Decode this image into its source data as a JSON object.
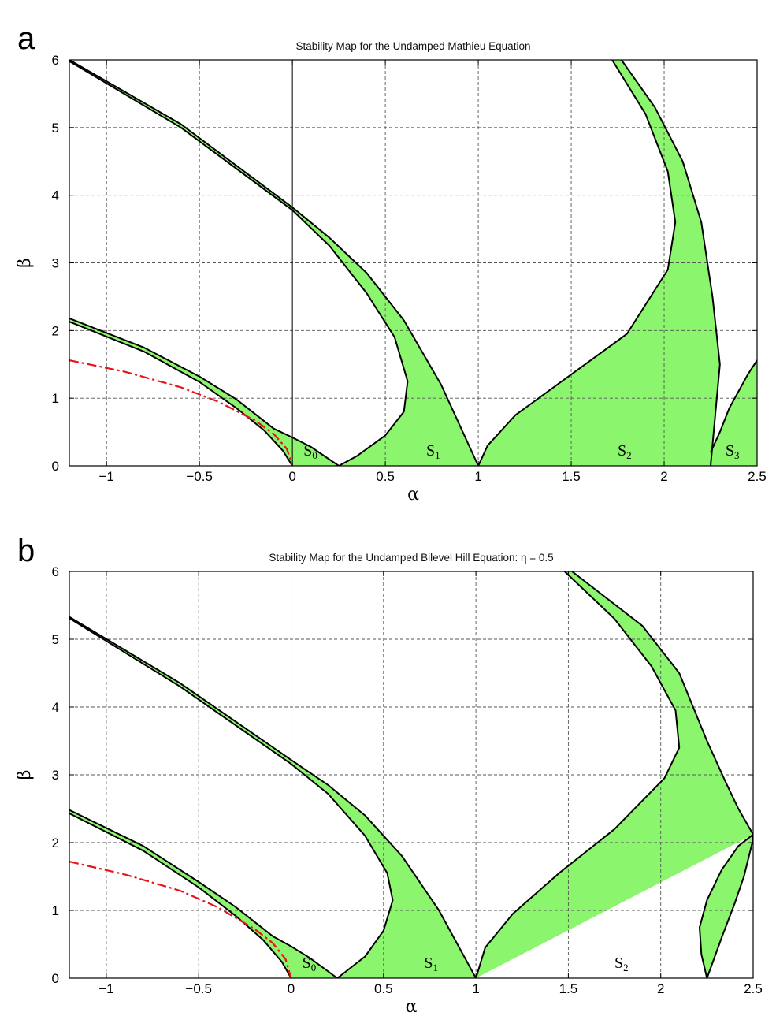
{
  "figure_labels": [
    "a",
    "b"
  ],
  "chart_data": [
    {
      "panel": "a",
      "type": "area",
      "title": "Stability Map for the Undamped Mathieu Equation",
      "xlabel": "α",
      "ylabel": "β",
      "xlim": [
        -1.2,
        2.5
      ],
      "ylim": [
        0,
        6
      ],
      "xticks": [
        -1,
        -0.5,
        0,
        0.5,
        1,
        1.5,
        2,
        2.5
      ],
      "xtick_labels": [
        "−1",
        "−0.5",
        "0",
        "0.5",
        "1",
        "1.5",
        "2",
        "2.5"
      ],
      "yticks": [
        0,
        1,
        2,
        3,
        4,
        5,
        6
      ],
      "ytick_labels": [
        "0",
        "1",
        "2",
        "3",
        "4",
        "5",
        "6"
      ],
      "grid": true,
      "fill_color": "#8cf56e",
      "dashed_curve_color": "#e8141a",
      "regions": [
        {
          "label": "S",
          "sub": "0",
          "label_pos": [
            0.06,
            0.15
          ],
          "upper": [
            [
              -1.2,
              2.18
            ],
            [
              -0.8,
              1.75
            ],
            [
              -0.5,
              1.32
            ],
            [
              -0.3,
              0.98
            ],
            [
              -0.1,
              0.55
            ],
            [
              0,
              0.42
            ],
            [
              0.1,
              0.28
            ],
            [
              0.25,
              0
            ]
          ],
          "lower": [
            [
              -1.2,
              2.13
            ],
            [
              -0.8,
              1.69
            ],
            [
              -0.5,
              1.24
            ],
            [
              -0.3,
              0.85
            ],
            [
              -0.15,
              0.52
            ],
            [
              -0.05,
              0.22
            ],
            [
              0,
              0
            ]
          ]
        },
        {
          "label": "S",
          "sub": "1",
          "label_pos": [
            0.72,
            0.15
          ],
          "upper": [
            [
              -1.2,
              6.0
            ],
            [
              -0.6,
              5.05
            ],
            [
              0,
              3.82
            ],
            [
              0.2,
              3.37
            ],
            [
              0.4,
              2.85
            ],
            [
              0.6,
              2.15
            ],
            [
              0.8,
              1.2
            ],
            [
              1.0,
              0
            ]
          ],
          "lower": [
            [
              -1.2,
              5.98
            ],
            [
              -0.6,
              5.0
            ],
            [
              0,
              3.78
            ],
            [
              0.2,
              3.25
            ],
            [
              0.4,
              2.55
            ],
            [
              0.55,
              1.9
            ],
            [
              0.62,
              1.25
            ],
            [
              0.6,
              0.8
            ],
            [
              0.5,
              0.45
            ],
            [
              0.35,
              0.15
            ],
            [
              0.25,
              0
            ]
          ]
        },
        {
          "label": "S",
          "sub": "2",
          "label_pos": [
            1.75,
            0.15
          ],
          "upper": [
            [
              1.77,
              6.0
            ],
            [
              1.95,
              5.3
            ],
            [
              2.1,
              4.5
            ],
            [
              2.2,
              3.6
            ],
            [
              2.26,
              2.5
            ],
            [
              2.3,
              1.5
            ],
            [
              2.27,
              0.6
            ],
            [
              2.25,
              0
            ]
          ],
          "lower": [
            [
              1.72,
              6.0
            ],
            [
              1.9,
              5.2
            ],
            [
              2.02,
              4.35
            ],
            [
              2.06,
              3.6
            ],
            [
              2.02,
              2.9
            ],
            [
              1.8,
              1.95
            ],
            [
              1.5,
              1.35
            ],
            [
              1.2,
              0.75
            ],
            [
              1.05,
              0.3
            ],
            [
              1.0,
              0
            ]
          ]
        },
        {
          "label": "S",
          "sub": "3",
          "label_pos": [
            2.33,
            0.15
          ],
          "upper": [
            [
              2.25,
              0.2
            ],
            [
              2.3,
              0.5
            ],
            [
              2.35,
              0.85
            ],
            [
              2.4,
              1.1
            ],
            [
              2.45,
              1.35
            ],
            [
              2.5,
              1.56
            ]
          ],
          "lower": [
            [
              2.25,
              0
            ],
            [
              2.5,
              0
            ]
          ]
        }
      ],
      "dashed_curve": [
        [
          -1.2,
          1.56
        ],
        [
          -0.9,
          1.39
        ],
        [
          -0.6,
          1.16
        ],
        [
          -0.4,
          0.95
        ],
        [
          -0.2,
          0.67
        ],
        [
          -0.1,
          0.47
        ],
        [
          -0.03,
          0.25
        ],
        [
          0,
          0
        ]
      ]
    },
    {
      "panel": "b",
      "type": "area",
      "title": "Stability Map for the Undamped Bilevel Hill Equation: η = 0.5",
      "xlabel": "α",
      "ylabel": "β",
      "xlim": [
        -1.2,
        2.5
      ],
      "ylim": [
        0,
        6
      ],
      "xticks": [
        -1,
        -0.5,
        0,
        0.5,
        1,
        1.5,
        2,
        2.5
      ],
      "xtick_labels": [
        "−1",
        "−0.5",
        "0",
        "0.5",
        "1",
        "1.5",
        "2",
        "2.5"
      ],
      "yticks": [
        0,
        1,
        2,
        3,
        4,
        5,
        6
      ],
      "ytick_labels": [
        "0",
        "1",
        "2",
        "3",
        "4",
        "5",
        "6"
      ],
      "grid": true,
      "fill_color": "#8cf56e",
      "dashed_curve_color": "#e8141a",
      "regions": [
        {
          "label": "S",
          "sub": "0",
          "label_pos": [
            0.06,
            0.15
          ],
          "upper": [
            [
              -1.2,
              2.48
            ],
            [
              -0.8,
              1.95
            ],
            [
              -0.5,
              1.42
            ],
            [
              -0.3,
              1.05
            ],
            [
              -0.1,
              0.62
            ],
            [
              0,
              0.47
            ],
            [
              0.1,
              0.3
            ],
            [
              0.25,
              0
            ]
          ],
          "lower": [
            [
              -1.2,
              2.43
            ],
            [
              -0.8,
              1.88
            ],
            [
              -0.5,
              1.34
            ],
            [
              -0.3,
              0.92
            ],
            [
              -0.15,
              0.56
            ],
            [
              -0.05,
              0.24
            ],
            [
              0,
              0
            ]
          ]
        },
        {
          "label": "S",
          "sub": "1",
          "label_pos": [
            0.72,
            0.15
          ],
          "upper": [
            [
              -1.2,
              5.33
            ],
            [
              -0.6,
              4.35
            ],
            [
              0,
              3.22
            ],
            [
              0.2,
              2.85
            ],
            [
              0.4,
              2.4
            ],
            [
              0.6,
              1.8
            ],
            [
              0.8,
              1.0
            ],
            [
              1.0,
              0
            ]
          ],
          "lower": [
            [
              -1.2,
              5.31
            ],
            [
              -0.6,
              4.3
            ],
            [
              0,
              3.16
            ],
            [
              0.2,
              2.72
            ],
            [
              0.4,
              2.1
            ],
            [
              0.52,
              1.55
            ],
            [
              0.55,
              1.15
            ],
            [
              0.5,
              0.7
            ],
            [
              0.4,
              0.32
            ],
            [
              0.25,
              0
            ]
          ]
        },
        {
          "label": "S",
          "sub": "2",
          "label_pos": [
            1.75,
            0.15
          ],
          "upper": [
            [
              1.52,
              6.0
            ],
            [
              1.9,
              5.2
            ],
            [
              2.1,
              4.5
            ],
            [
              2.25,
              3.5
            ],
            [
              2.35,
              2.9
            ],
            [
              2.42,
              2.5
            ],
            [
              2.5,
              2.12
            ]
          ],
          "lower": [
            [
              1.48,
              6.0
            ],
            [
              1.75,
              5.3
            ],
            [
              1.95,
              4.6
            ],
            [
              2.08,
              3.95
            ],
            [
              2.1,
              3.4
            ],
            [
              2.02,
              2.95
            ],
            [
              1.75,
              2.2
            ],
            [
              1.45,
              1.55
            ],
            [
              1.2,
              0.95
            ],
            [
              1.05,
              0.45
            ],
            [
              1.0,
              0
            ]
          ],
          "hole": [
            [
              2.25,
              0
            ],
            [
              2.22,
              0.35
            ],
            [
              2.21,
              0.75
            ],
            [
              2.25,
              1.15
            ],
            [
              2.33,
              1.6
            ],
            [
              2.42,
              1.95
            ],
            [
              2.5,
              2.12
            ],
            [
              2.5,
              2.05
            ],
            [
              2.45,
              1.5
            ],
            [
              2.4,
              1.1
            ],
            [
              2.33,
              0.6
            ]
          ]
        }
      ],
      "dashed_curve": [
        [
          -1.2,
          1.72
        ],
        [
          -0.9,
          1.53
        ],
        [
          -0.6,
          1.29
        ],
        [
          -0.4,
          1.05
        ],
        [
          -0.2,
          0.73
        ],
        [
          -0.1,
          0.52
        ],
        [
          -0.03,
          0.28
        ],
        [
          0,
          0
        ]
      ]
    }
  ]
}
